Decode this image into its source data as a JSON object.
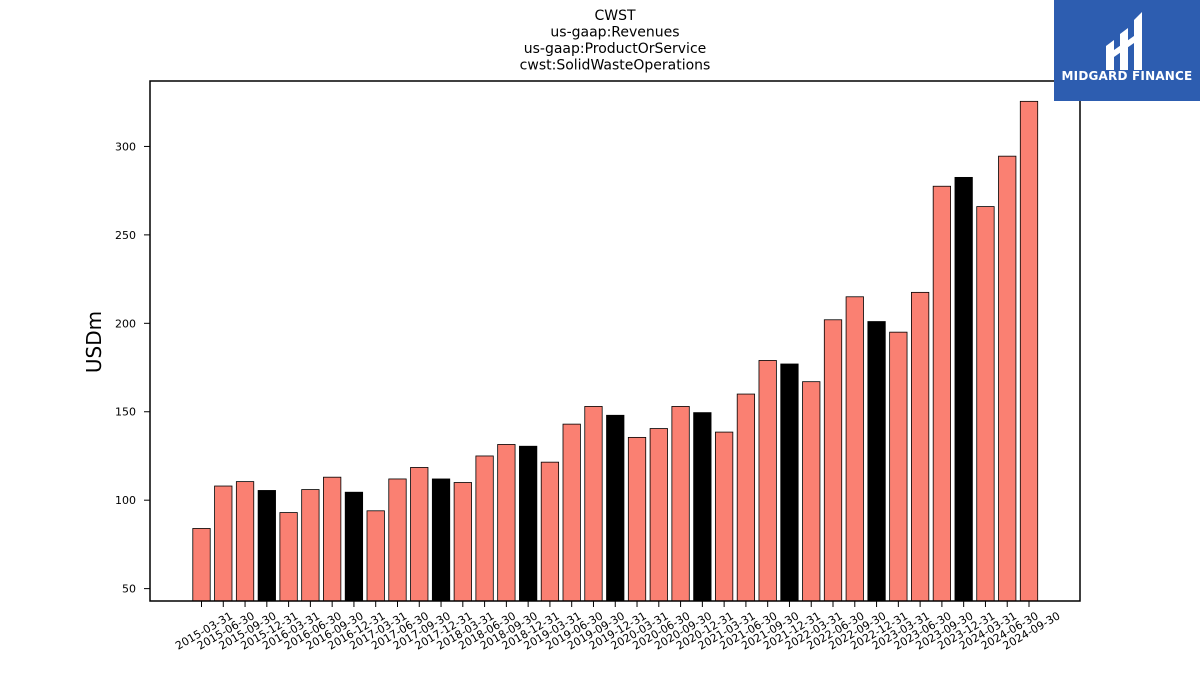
{
  "chart_data": {
    "type": "bar",
    "title_lines": [
      "CWST",
      "us-gaap:Revenues",
      "us-gaap:ProductOrService",
      "cwst:SolidWasteOperations"
    ],
    "xlabel": "",
    "ylabel": "USDm",
    "ylim": [
      43,
      337
    ],
    "yticks": [
      50,
      100,
      150,
      200,
      250,
      300
    ],
    "categories": [
      "2015-03-31",
      "2015-06-30",
      "2015-09-30",
      "2015-12-31",
      "2016-03-31",
      "2016-06-30",
      "2016-09-30",
      "2016-12-31",
      "2017-03-31",
      "2017-06-30",
      "2017-09-30",
      "2017-12-31",
      "2018-03-31",
      "2018-06-30",
      "2018-09-30",
      "2018-12-31",
      "2019-03-31",
      "2019-06-30",
      "2019-09-30",
      "2019-12-31",
      "2020-03-31",
      "2020-06-30",
      "2020-09-30",
      "2020-12-31",
      "2021-03-31",
      "2021-06-30",
      "2021-09-30",
      "2021-12-31",
      "2022-03-31",
      "2022-06-30",
      "2022-09-30",
      "2022-12-31",
      "2023-03-31",
      "2023-06-30",
      "2023-09-30",
      "2023-12-31",
      "2024-03-31",
      "2024-06-30",
      "2024-09-30"
    ],
    "values": [
      84,
      108,
      110.5,
      105.5,
      93,
      106,
      113,
      104.5,
      94,
      112,
      118.5,
      112,
      110,
      125,
      131.5,
      130.5,
      121.5,
      143,
      153,
      148,
      135.5,
      140.5,
      153,
      149.5,
      138.5,
      160,
      179,
      177,
      167,
      202,
      215,
      201,
      195,
      217.5,
      277.5,
      282.5,
      266,
      294.5,
      325.5
    ],
    "colors": {
      "quarter": "#fa8072",
      "year_end": "#000000",
      "edge": "#000000"
    },
    "year_end_suffix": "-12-31",
    "grid": false,
    "legend": "none"
  },
  "logo": {
    "brand_text": "MIDGARD FINANCE"
  }
}
